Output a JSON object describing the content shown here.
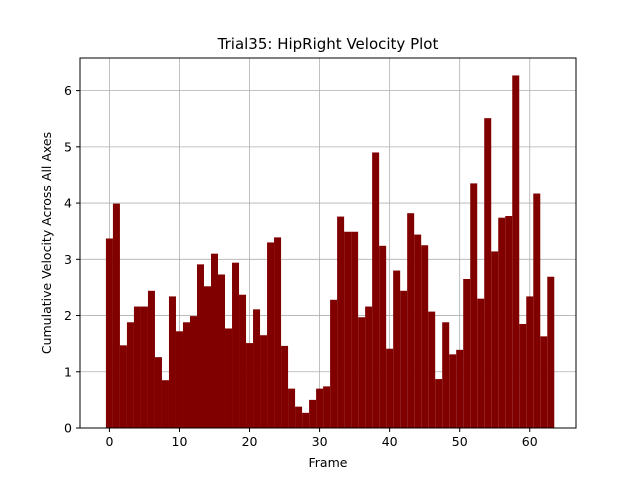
{
  "chart_data": {
    "type": "bar",
    "title": "Trial35: HipRight Velocity Plot",
    "xlabel": "Frame",
    "ylabel": "Cumulative Velocity Across All Axes",
    "xlim": [
      -4.2,
      66.6
    ],
    "ylim": [
      0,
      6.58
    ],
    "xticks": [
      0,
      10,
      20,
      30,
      40,
      50,
      60
    ],
    "yticks": [
      0,
      1,
      2,
      3,
      4,
      5,
      6
    ],
    "grid": true,
    "bar_color": "#800000",
    "bar_width": 1.0,
    "x": [
      0,
      1,
      2,
      3,
      4,
      5,
      6,
      7,
      8,
      9,
      10,
      11,
      12,
      13,
      14,
      15,
      16,
      17,
      18,
      19,
      20,
      21,
      22,
      23,
      24,
      25,
      26,
      27,
      28,
      29,
      30,
      31,
      32,
      33,
      34,
      35,
      36,
      37,
      38,
      39,
      40,
      41,
      42,
      43,
      44,
      45,
      46,
      47,
      48,
      49,
      50,
      51,
      52,
      53,
      54,
      55,
      56,
      57,
      58,
      59,
      60,
      61,
      62,
      63
    ],
    "values": [
      3.37,
      3.99,
      1.47,
      1.88,
      2.16,
      2.16,
      2.44,
      1.26,
      0.85,
      2.34,
      1.72,
      1.88,
      1.99,
      2.91,
      2.52,
      3.1,
      2.73,
      1.77,
      2.94,
      2.37,
      1.51,
      2.11,
      1.65,
      3.3,
      3.39,
      1.46,
      0.7,
      0.38,
      0.27,
      0.5,
      0.7,
      0.74,
      2.28,
      3.76,
      3.49,
      3.49,
      1.97,
      2.16,
      4.9,
      3.24,
      1.41,
      2.8,
      2.44,
      3.82,
      3.44,
      3.25,
      2.07,
      0.87,
      1.88,
      1.31,
      1.39,
      2.65,
      4.35,
      2.3,
      5.51,
      3.14,
      3.74,
      3.77,
      6.27,
      1.85,
      2.34,
      4.17,
      1.63,
      2.69
    ]
  }
}
